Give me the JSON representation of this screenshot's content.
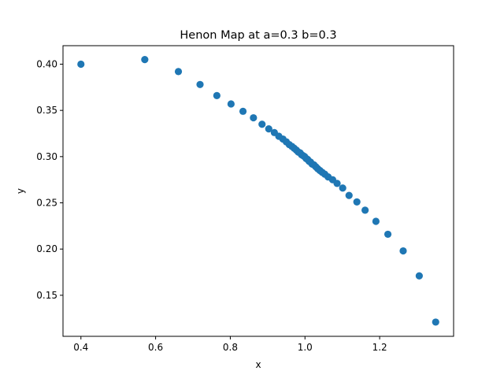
{
  "chart_data": {
    "type": "scatter",
    "title": "Henon Map at a=0.3 b=0.3",
    "xlabel": "x",
    "ylabel": "y",
    "xlim": [
      0.352,
      1.398
    ],
    "ylim": [
      0.1056,
      0.42
    ],
    "grid": false,
    "legend": "none",
    "color": "#1f77b4",
    "xticks": [
      0.4,
      0.6,
      0.8,
      1.0,
      1.2
    ],
    "xtick_labels": [
      "0.4",
      "0.6",
      "0.8",
      "1.0",
      "1.2"
    ],
    "yticks": [
      0.15,
      0.2,
      0.25,
      0.3,
      0.35,
      0.4
    ],
    "ytick_labels": [
      "0.15",
      "0.20",
      "0.25",
      "0.30",
      "0.35",
      "0.40"
    ],
    "x": [
      0.4,
      0.571,
      0.661,
      0.719,
      0.764,
      0.802,
      0.834,
      0.862,
      0.885,
      0.903,
      0.918,
      0.93,
      0.941,
      0.95,
      0.958,
      0.965,
      0.971,
      0.977,
      0.982,
      0.987,
      0.991,
      0.995,
      0.999,
      1.003,
      1.007,
      1.011,
      1.015,
      1.019,
      1.024,
      1.029,
      1.034,
      1.04,
      1.046,
      1.053,
      1.062,
      1.074,
      1.086,
      1.101,
      1.118,
      1.139,
      1.161,
      1.19,
      1.222,
      1.263,
      1.306,
      1.35
    ],
    "y": [
      0.4,
      0.405,
      0.392,
      0.378,
      0.366,
      0.357,
      0.349,
      0.342,
      0.335,
      0.33,
      0.326,
      0.322,
      0.319,
      0.316,
      0.313,
      0.311,
      0.309,
      0.307,
      0.305,
      0.304,
      0.302,
      0.301,
      0.3,
      0.298,
      0.297,
      0.295,
      0.294,
      0.292,
      0.291,
      0.289,
      0.287,
      0.285,
      0.283,
      0.281,
      0.278,
      0.275,
      0.271,
      0.266,
      0.258,
      0.251,
      0.242,
      0.23,
      0.216,
      0.198,
      0.171,
      0.121
    ]
  }
}
